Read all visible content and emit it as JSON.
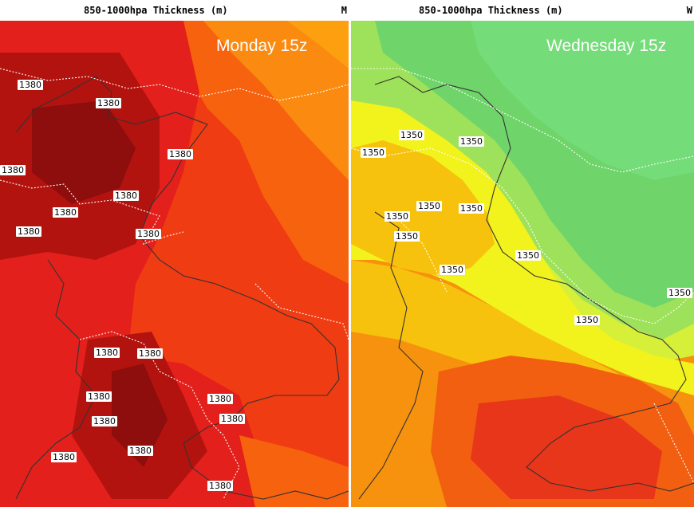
{
  "left": {
    "header_title": "850-1000hpa Thickness (m)",
    "header_cut": "M",
    "overlay_title": "Monday 15z",
    "contour_label": "1380",
    "colors": {
      "darkest": "#8e0d0d",
      "dark": "#b3130f",
      "red": "#e3201b",
      "redorange": "#f03c12",
      "orange": "#f7620e",
      "amber": "#fb8a10"
    }
  },
  "right": {
    "header_title": "850-1000hpa Thickness (m)",
    "header_cut": "W",
    "overlay_title": "Wednesday 15z",
    "contour_label": "1350",
    "colors": {
      "green": "#6fd46a",
      "lightgreen": "#9ee15a",
      "yellowgreen": "#d6f03a",
      "yellow": "#f2f21c",
      "gold": "#f7c20e",
      "orange": "#f7920e",
      "redorange": "#f25f11",
      "red": "#e8361a"
    }
  }
}
